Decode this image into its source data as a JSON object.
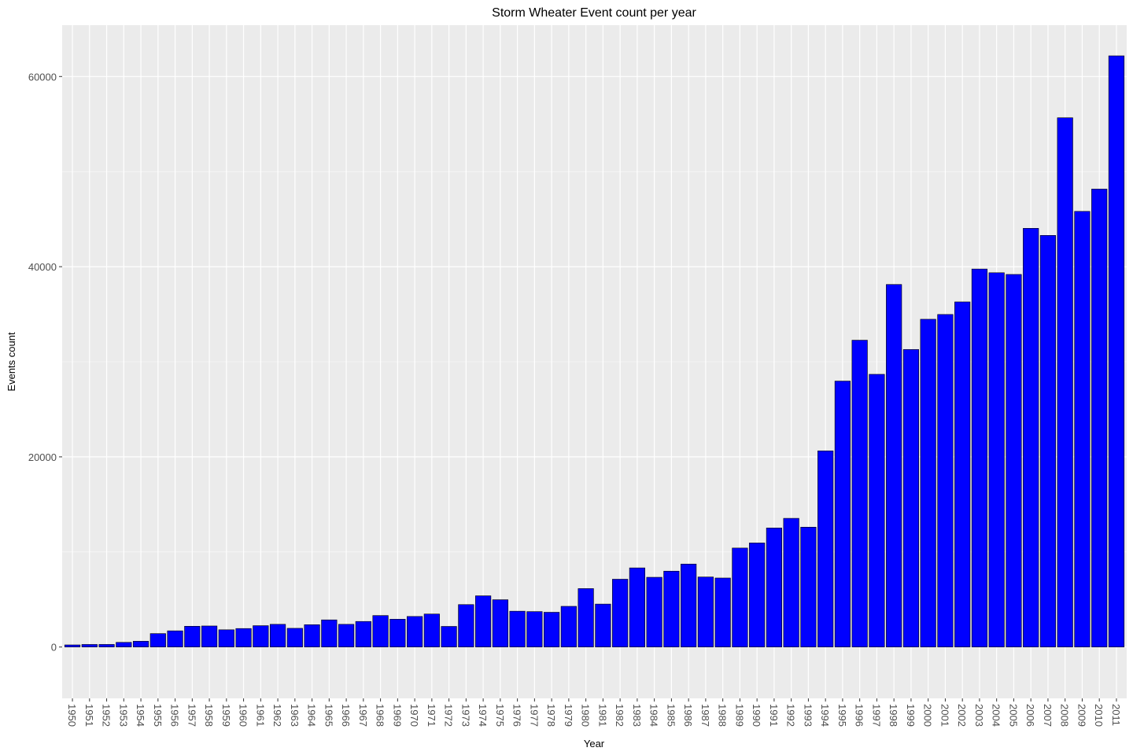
{
  "chart_data": {
    "type": "bar",
    "title": "Storm Wheater Event count per year",
    "xlabel": "Year",
    "ylabel": "Events count",
    "ylim": [
      -5400,
      65400
    ],
    "yticks": [
      0,
      20000,
      40000,
      60000
    ],
    "ytick_labels": [
      "0",
      "20000",
      "40000",
      "60000"
    ],
    "grid": true,
    "legend": "none",
    "colors": {
      "bar_fill": "#0000ff",
      "bar_stroke": "#000000",
      "panel_bg": "#ebebeb",
      "grid": "#ffffff"
    },
    "categories": [
      "1950",
      "1951",
      "1952",
      "1953",
      "1954",
      "1955",
      "1956",
      "1957",
      "1958",
      "1959",
      "1960",
      "1961",
      "1962",
      "1963",
      "1964",
      "1965",
      "1966",
      "1967",
      "1968",
      "1969",
      "1970",
      "1971",
      "1972",
      "1973",
      "1974",
      "1975",
      "1976",
      "1977",
      "1978",
      "1979",
      "1980",
      "1981",
      "1982",
      "1983",
      "1984",
      "1985",
      "1986",
      "1987",
      "1988",
      "1989",
      "1990",
      "1991",
      "1992",
      "1993",
      "1994",
      "1995",
      "1996",
      "1997",
      "1998",
      "1999",
      "2000",
      "2001",
      "2002",
      "2003",
      "2004",
      "2005",
      "2006",
      "2007",
      "2008",
      "2009",
      "2010",
      "2011"
    ],
    "values": [
      223,
      269,
      272,
      492,
      609,
      1413,
      1703,
      2184,
      2213,
      1813,
      1945,
      2246,
      2389,
      1968,
      2348,
      2855,
      2388,
      2688,
      3312,
      2926,
      3215,
      3471,
      2168,
      4463,
      5386,
      4975,
      3768,
      3728,
      3657,
      4279,
      6146,
      4517,
      7132,
      8322,
      7335,
      7979,
      8726,
      7367,
      7257,
      10410,
      10946,
      12522,
      13534,
      12607,
      20631,
      27970,
      32270,
      28680,
      38128,
      31289,
      34471,
      34975,
      36293,
      39752,
      39363,
      39184,
      44034,
      43289,
      55663,
      45817,
      48161,
      62174
    ]
  }
}
